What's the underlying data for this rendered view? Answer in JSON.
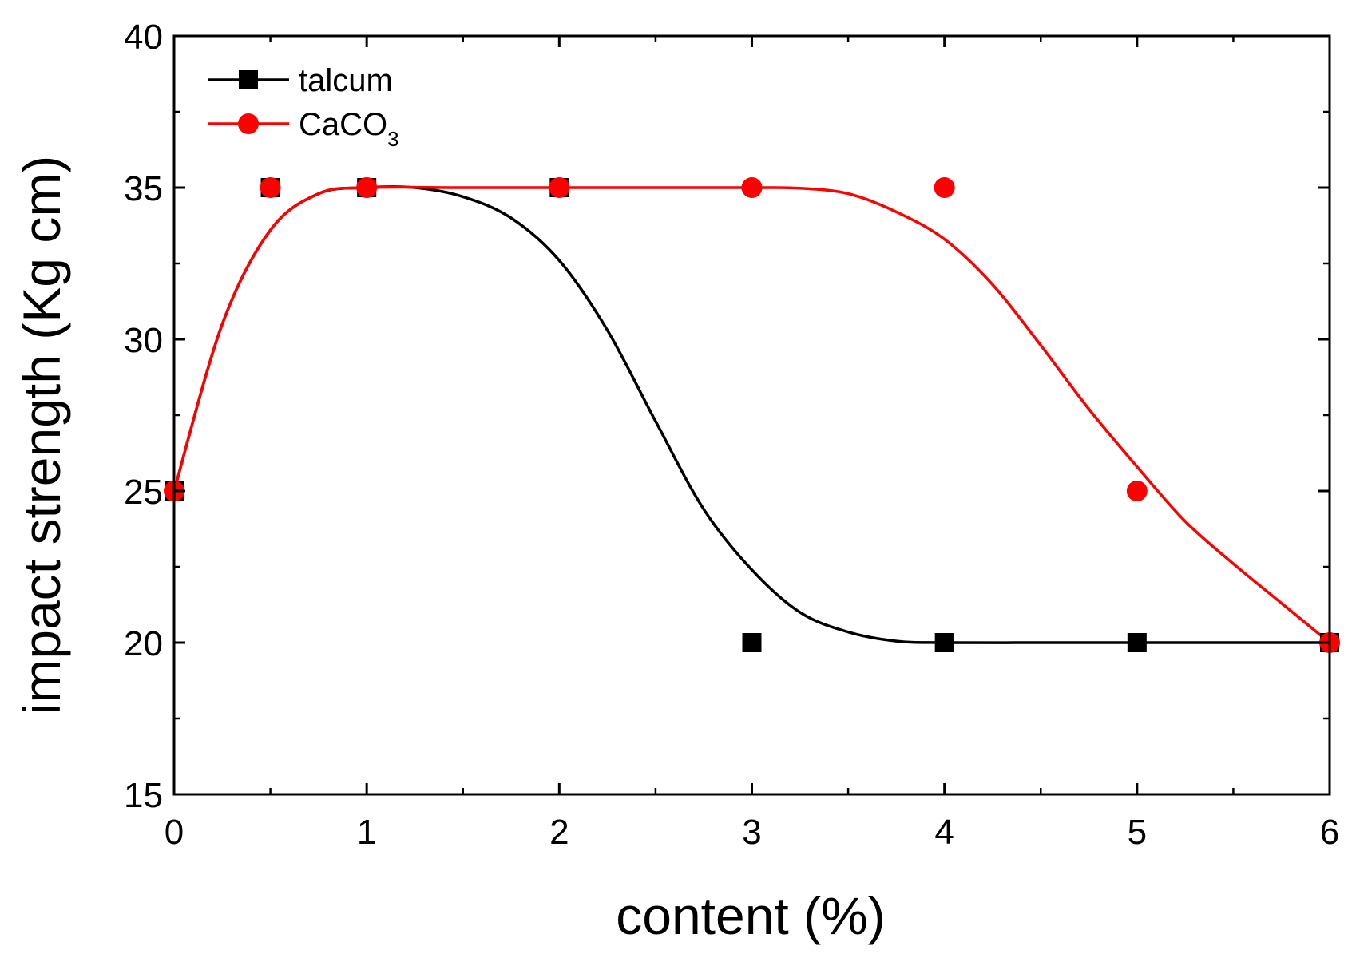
{
  "chart_data": {
    "type": "scatter",
    "xlabel": "content (%)",
    "ylabel": "impact strength (Kg cm)",
    "xlim": [
      0,
      6
    ],
    "ylim": [
      15,
      40
    ],
    "x_ticks": [
      "0",
      "1",
      "2",
      "3",
      "4",
      "5",
      "6"
    ],
    "y_ticks": [
      "15",
      "20",
      "25",
      "30",
      "35",
      "40"
    ],
    "grid": false,
    "legend_position": "top-left",
    "series": [
      {
        "name": "talcum",
        "color": "#000000",
        "marker": "square",
        "x": [
          0,
          0.5,
          1,
          2,
          3,
          4,
          5,
          6
        ],
        "y": [
          25,
          35,
          35,
          35,
          20,
          20,
          20,
          20
        ],
        "fit_curve": {
          "x": [
            0,
            0.25,
            0.5,
            0.75,
            1.0,
            1.25,
            1.5,
            1.75,
            2.0,
            2.25,
            2.5,
            2.75,
            3.0,
            3.25,
            3.5,
            3.75,
            4.0,
            4.5,
            5.0,
            5.5,
            6.0
          ],
          "y": [
            25,
            30.5,
            33.6,
            34.8,
            35,
            35,
            34.7,
            34.0,
            32.6,
            30.3,
            27.3,
            24.4,
            22.4,
            21.0,
            20.35,
            20.05,
            20,
            20,
            20,
            20,
            20
          ]
        }
      },
      {
        "name": "CaCO3",
        "name_main": "CaCO",
        "name_sub": "3",
        "color": "#ff0000",
        "marker": "circle",
        "x": [
          0,
          0.5,
          1,
          2,
          3,
          4,
          5,
          6
        ],
        "y": [
          25,
          35,
          35,
          35,
          35,
          35,
          25,
          20
        ],
        "fit_curve": {
          "x": [
            0,
            0.25,
            0.5,
            0.75,
            1.0,
            1.5,
            2.0,
            2.5,
            3.0,
            3.25,
            3.5,
            3.75,
            4.0,
            4.25,
            4.5,
            4.75,
            5.0,
            5.25,
            5.5,
            5.75,
            6.0
          ],
          "y": [
            25,
            30.5,
            33.6,
            34.8,
            35,
            35,
            35,
            35,
            35,
            34.98,
            34.8,
            34.2,
            33.3,
            31.8,
            29.8,
            27.7,
            25.8,
            24.0,
            22.6,
            21.3,
            20
          ]
        }
      }
    ]
  }
}
